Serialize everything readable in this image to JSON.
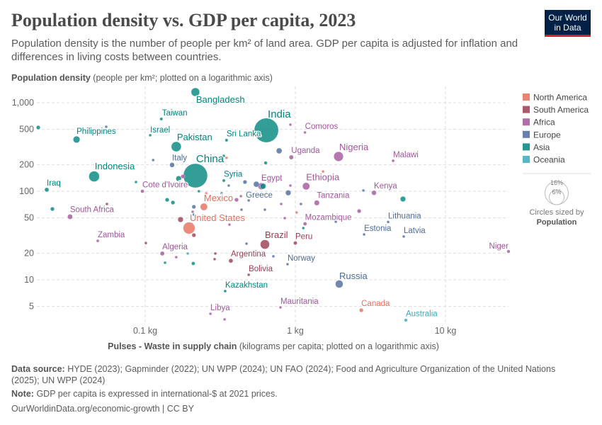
{
  "header": {
    "title": "Population density vs. GDP per capita, 2023",
    "subtitle": "Population density is the number of people per km² of land area. GDP per capita is adjusted for inflation and differences in living costs between countries.",
    "logo_line1": "Our World",
    "logo_line2": "in Data"
  },
  "footer": {
    "source_label": "Data source:",
    "source_text": "HYDE (2023); Gapminder (2022); UN WPP (2024); UN FAO (2024); Food and Agriculture Organization of the United Nations (2025); UN WPP (2024)",
    "note_label": "Note:",
    "note_text": "GDP per capita is expressed in international-$ at 2021 prices.",
    "url": "OurWorldinData.org/economic-growth | CC BY"
  },
  "chart_data": {
    "type": "scatter",
    "title": "Population density vs. GDP per capita, 2023",
    "ylabel_bold": "Population density",
    "ylabel_rest": " (people per km²; plotted on a logarithmic axis)",
    "xlabel_bold": "Pulses - Waste in supply chain",
    "xlabel_rest": " (kilograms per capita; plotted on a logarithmic axis)",
    "x_scale": "log",
    "y_scale": "log",
    "xlim": [
      0.019,
      26
    ],
    "ylim": [
      3.3,
      1400
    ],
    "x_ticks": [
      {
        "v": 0.1,
        "label": "0.1 kg"
      },
      {
        "v": 1,
        "label": "1 kg"
      },
      {
        "v": 10,
        "label": "10 kg"
      }
    ],
    "y_ticks": [
      {
        "v": 5,
        "label": "5"
      },
      {
        "v": 10,
        "label": "10"
      },
      {
        "v": 20,
        "label": "20"
      },
      {
        "v": 50,
        "label": "50"
      },
      {
        "v": 100,
        "label": "100"
      },
      {
        "v": 200,
        "label": "200"
      },
      {
        "v": 500,
        "label": "500"
      },
      {
        "v": 1000,
        "label": "1,000"
      }
    ],
    "grid": true,
    "legend_position": "right",
    "regions": [
      {
        "name": "North America",
        "color": "#E56E5A"
      },
      {
        "name": "South America",
        "color": "#9A3C4F"
      },
      {
        "name": "Africa",
        "color": "#A2559C"
      },
      {
        "name": "Europe",
        "color": "#4C6A9C"
      },
      {
        "name": "Asia",
        "color": "#00847E"
      },
      {
        "name": "Oceania",
        "color": "#38AABA"
      }
    ],
    "size_legend": {
      "large": "16%",
      "small": "6%",
      "caption": "Circles sized by",
      "variable": "Population"
    },
    "points": [
      {
        "name": "Bangladesh",
        "region": "Asia",
        "x": 0.216,
        "y": 1318,
        "pop": 2.2
      },
      {
        "name": "Taiwan",
        "region": "Asia",
        "x": 0.128,
        "y": 655,
        "pop": 0.3
      },
      {
        "name": "India",
        "region": "Asia",
        "x": 0.641,
        "y": 488,
        "pop": 17.8
      },
      {
        "name": "Comoros",
        "region": "Africa",
        "x": 1.16,
        "y": 461,
        "pop": 0.1
      },
      {
        "name": "Philippines",
        "region": "Asia",
        "x": 0.0349,
        "y": 384,
        "pop": 1.4
      },
      {
        "name": "Israel",
        "region": "Asia",
        "x": 0.108,
        "y": 429,
        "pop": 0.12
      },
      {
        "name": "Pakistan",
        "region": "Asia",
        "x": 0.161,
        "y": 319,
        "pop": 3.0
      },
      {
        "name": "Sri Lanka",
        "region": "Asia",
        "x": 0.348,
        "y": 377,
        "pop": 0.3
      },
      {
        "name": "Uganda",
        "region": "Africa",
        "x": 0.94,
        "y": 242,
        "pop": 0.6
      },
      {
        "name": "Nigeria",
        "region": "Africa",
        "x": 1.94,
        "y": 247,
        "pop": 2.8
      },
      {
        "name": "Malawi",
        "region": "Africa",
        "x": 4.48,
        "y": 221,
        "pop": 0.26
      },
      {
        "name": "Italy",
        "region": "Europe",
        "x": 0.151,
        "y": 198,
        "pop": 0.74
      },
      {
        "name": "China",
        "region": "Asia",
        "x": 0.216,
        "y": 150,
        "pop": 17.6
      },
      {
        "name": "Indonesia",
        "region": "Asia",
        "x": 0.0457,
        "y": 147,
        "pop": 3.4
      },
      {
        "name": "Syria",
        "region": "Asia",
        "x": 0.334,
        "y": 132,
        "pop": 0.29
      },
      {
        "name": "Egypt",
        "region": "Africa",
        "x": 0.594,
        "y": 114,
        "pop": 1.4
      },
      {
        "name": "Ethiopia",
        "region": "Africa",
        "x": 1.18,
        "y": 114,
        "pop": 1.6
      },
      {
        "name": "Iraq",
        "region": "Asia",
        "x": 0.0221,
        "y": 104,
        "pop": 0.57
      },
      {
        "name": "Cote d'Ivoire",
        "region": "Africa",
        "x": 0.0958,
        "y": 100,
        "pop": 0.39
      },
      {
        "name": "Kenya",
        "region": "Africa",
        "x": 3.34,
        "y": 96,
        "pop": 0.7
      },
      {
        "name": "Tanzania",
        "region": "Africa",
        "x": 1.39,
        "y": 74,
        "pop": 0.85
      },
      {
        "name": "Greece",
        "region": "Europe",
        "x": 0.489,
        "y": 78.7,
        "pop": 0.13
      },
      {
        "name": "Mexico",
        "region": "North America",
        "x": 0.246,
        "y": 66.7,
        "pop": 1.6
      },
      {
        "name": "South Africa",
        "region": "Africa",
        "x": 0.0316,
        "y": 51.5,
        "pop": 0.79
      },
      {
        "name": "Mozambique",
        "region": "Africa",
        "x": 1.16,
        "y": 42.9,
        "pop": 0.42
      },
      {
        "name": "Lithuania",
        "region": "Europe",
        "x": 4.15,
        "y": 45,
        "pop": 0.04
      },
      {
        "name": "United States",
        "region": "North America",
        "x": 0.196,
        "y": 38.4,
        "pop": 4.2
      },
      {
        "name": "Estonia",
        "region": "Europe",
        "x": 2.87,
        "y": 32.5,
        "pop": 0.02
      },
      {
        "name": "Latvia",
        "region": "Europe",
        "x": 5.27,
        "y": 30.8,
        "pop": 0.02
      },
      {
        "name": "Zambia",
        "region": "Africa",
        "x": 0.0483,
        "y": 27.5,
        "pop": 0.26
      },
      {
        "name": "Brazil",
        "region": "South America",
        "x": 0.627,
        "y": 25.1,
        "pop": 2.6
      },
      {
        "name": "Peru",
        "region": "South America",
        "x": 1.0,
        "y": 26,
        "pop": 0.42
      },
      {
        "name": "Niger",
        "region": "Africa",
        "x": 26.3,
        "y": 20.9,
        "pop": 0.33
      },
      {
        "name": "Algeria",
        "region": "Africa",
        "x": 0.13,
        "y": 19.8,
        "pop": 0.57
      },
      {
        "name": "Argentina",
        "region": "South America",
        "x": 0.372,
        "y": 16.4,
        "pop": 0.57
      },
      {
        "name": "Norway",
        "region": "Europe",
        "x": 0.887,
        "y": 15,
        "pop": 0.07
      },
      {
        "name": "Bolivia",
        "region": "South America",
        "x": 0.489,
        "y": 11.4,
        "pop": 0.15
      },
      {
        "name": "Russia",
        "region": "Europe",
        "x": 1.96,
        "y": 8.96,
        "pop": 1.8
      },
      {
        "name": "Kazakhstan",
        "region": "Asia",
        "x": 0.341,
        "y": 7.45,
        "pop": 0.25
      },
      {
        "name": "Mauritania",
        "region": "Africa",
        "x": 0.796,
        "y": 4.88,
        "pop": 0.06
      },
      {
        "name": "Canada",
        "region": "North America",
        "x": 2.75,
        "y": 4.53,
        "pop": 0.5
      },
      {
        "name": "Libya",
        "region": "Africa",
        "x": 0.272,
        "y": 4.13,
        "pop": 0.09
      },
      {
        "name": "Australia",
        "region": "Oceania",
        "x": 5.44,
        "y": 3.5,
        "pop": 0.33
      },
      {
        "name": "",
        "region": "Asia",
        "x": 0.0194,
        "y": 525,
        "pop": 0.5
      },
      {
        "name": "",
        "region": "Europe",
        "x": 0.055,
        "y": 535,
        "pop": 0.05
      },
      {
        "name": "",
        "region": "Europe",
        "x": 0.113,
        "y": 225,
        "pop": 0.08
      },
      {
        "name": "",
        "region": "North America",
        "x": 0.348,
        "y": 238,
        "pop": 0.08
      },
      {
        "name": "",
        "region": "Asia",
        "x": 0.334,
        "y": 251,
        "pop": 0.08
      },
      {
        "name": "",
        "region": "Asia",
        "x": 0.634,
        "y": 209,
        "pop": 0.35
      },
      {
        "name": "",
        "region": "Europe",
        "x": 0.78,
        "y": 286,
        "pop": 1.0
      },
      {
        "name": "",
        "region": "Africa",
        "x": 0.927,
        "y": 565,
        "pop": 0.2
      },
      {
        "name": "",
        "region": "Asia",
        "x": 0.0868,
        "y": 127,
        "pop": 0.15
      },
      {
        "name": "",
        "region": "Asia",
        "x": 0.167,
        "y": 139,
        "pop": 0.9
      },
      {
        "name": "",
        "region": "Africa",
        "x": 0.178,
        "y": 147,
        "pop": 0.5
      },
      {
        "name": "",
        "region": "Asia",
        "x": 0.14,
        "y": 80,
        "pop": 0.5
      },
      {
        "name": "",
        "region": "Asia",
        "x": 0.153,
        "y": 74.5,
        "pop": 0.5
      },
      {
        "name": "",
        "region": "Europe",
        "x": 0.211,
        "y": 66.7,
        "pop": 0.5
      },
      {
        "name": "",
        "region": "Africa",
        "x": 0.207,
        "y": 58.6,
        "pop": 0.2
      },
      {
        "name": "",
        "region": "Asia",
        "x": 0.211,
        "y": 54.5,
        "pop": 0.2
      },
      {
        "name": "",
        "region": "South America",
        "x": 0.172,
        "y": 47.9,
        "pop": 0.9
      },
      {
        "name": "",
        "region": "South America",
        "x": 0.211,
        "y": 31.9,
        "pop": 0.5
      },
      {
        "name": "",
        "region": "South America",
        "x": 0.101,
        "y": 26,
        "pop": 0.2
      },
      {
        "name": "",
        "region": "Oceania",
        "x": 0.192,
        "y": 19.8,
        "pop": 0.2
      },
      {
        "name": "",
        "region": "Africa",
        "x": 0.161,
        "y": 18.0,
        "pop": 0.2
      },
      {
        "name": "",
        "region": "Asia",
        "x": 0.1355,
        "y": 15.6,
        "pop": 0.2
      },
      {
        "name": "",
        "region": "Asia",
        "x": 0.209,
        "y": 15.3,
        "pop": 0.4
      },
      {
        "name": "",
        "region": "South America",
        "x": 0.293,
        "y": 19.8,
        "pop": 0.2
      },
      {
        "name": "",
        "region": "South America",
        "x": 0.29,
        "y": 17.1,
        "pop": 0.2
      },
      {
        "name": "",
        "region": "Europe",
        "x": 0.473,
        "y": 25.6,
        "pop": 0.2
      },
      {
        "name": "",
        "region": "Europe",
        "x": 0.714,
        "y": 18.4,
        "pop": 0.2
      },
      {
        "name": "",
        "region": "Europe",
        "x": 0.36,
        "y": 116,
        "pop": 0.2
      },
      {
        "name": "",
        "region": "Europe",
        "x": 0.462,
        "y": 127,
        "pop": 0.5
      },
      {
        "name": "",
        "region": "Europe",
        "x": 0.55,
        "y": 120,
        "pop": 1.0
      },
      {
        "name": "",
        "region": "Asia",
        "x": 0.61,
        "y": 114,
        "pop": 1.0
      },
      {
        "name": "",
        "region": "Africa",
        "x": 0.927,
        "y": 116,
        "pop": 0.2
      },
      {
        "name": "",
        "region": "Europe",
        "x": 0.897,
        "y": 96,
        "pop": 0.9
      },
      {
        "name": "",
        "region": "Africa",
        "x": 0.434,
        "y": 88,
        "pop": 0.2
      },
      {
        "name": "",
        "region": "Africa",
        "x": 0.406,
        "y": 80,
        "pop": 0.5
      },
      {
        "name": "",
        "region": "Europe",
        "x": 0.323,
        "y": 94.6,
        "pop": 0.2
      },
      {
        "name": "",
        "region": "Africa",
        "x": 0.805,
        "y": 71.8,
        "pop": 0.2
      },
      {
        "name": "",
        "region": "Europe",
        "x": 0.627,
        "y": 61.9,
        "pop": 0.2
      },
      {
        "name": "",
        "region": "Europe",
        "x": 0.438,
        "y": 61.9,
        "pop": 0.2
      },
      {
        "name": "",
        "region": "North America",
        "x": 1.02,
        "y": 57.5,
        "pop": 0.2
      },
      {
        "name": "",
        "region": "Africa",
        "x": 0.85,
        "y": 49.7,
        "pop": 0.2
      },
      {
        "name": "",
        "region": "Africa",
        "x": 0.364,
        "y": 42,
        "pop": 0.2
      },
      {
        "name": "",
        "region": "Asia",
        "x": 1.13,
        "y": 38.4,
        "pop": 0.2
      },
      {
        "name": "",
        "region": "North America",
        "x": 0.255,
        "y": 94.6,
        "pop": 0.15
      },
      {
        "name": "",
        "region": "Asia",
        "x": 0.228,
        "y": 100,
        "pop": 0.15
      },
      {
        "name": "",
        "region": "North America",
        "x": 1.53,
        "y": 167,
        "pop": 0.2
      },
      {
        "name": "",
        "region": "Europe",
        "x": 2.84,
        "y": 102,
        "pop": 0.2
      },
      {
        "name": "",
        "region": "Asia",
        "x": 5.21,
        "y": 81.7,
        "pop": 0.9
      },
      {
        "name": "",
        "region": "Europe",
        "x": 1.09,
        "y": 71.8,
        "pop": 0.2
      },
      {
        "name": "",
        "region": "Africa",
        "x": 2.66,
        "y": 59.7,
        "pop": 0.5
      },
      {
        "name": "",
        "region": "Europe",
        "x": 1.86,
        "y": 45.3,
        "pop": 0.15
      },
      {
        "name": "",
        "region": "Asia",
        "x": 0.0241,
        "y": 63,
        "pop": 0.5
      },
      {
        "name": "",
        "region": "South America",
        "x": 0.0556,
        "y": 71.8,
        "pop": 0.2
      },
      {
        "name": "",
        "region": "Africa",
        "x": 0.338,
        "y": 3.57,
        "pop": 0.2
      }
    ]
  }
}
